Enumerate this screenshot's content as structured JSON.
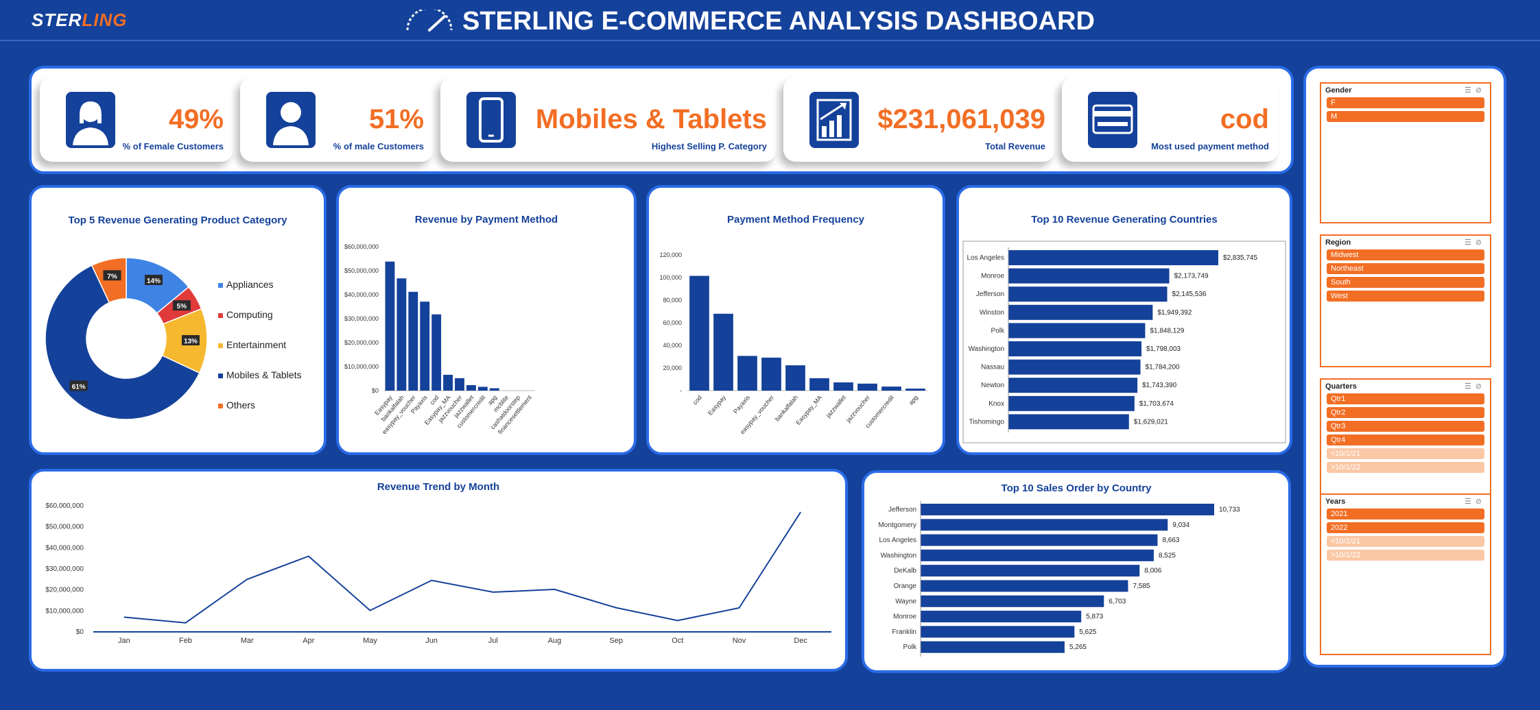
{
  "header": {
    "logo_part1": "STER",
    "logo_part2": "LING",
    "title": "STERLING E-COMMERCE ANALYSIS DASHBOARD"
  },
  "kpis": [
    {
      "value": "49%",
      "label": "% of Female Customers",
      "icon": "female-user-icon"
    },
    {
      "value": "51%",
      "label": "% of male Customers",
      "icon": "male-user-icon"
    },
    {
      "value": "Mobiles & Tablets",
      "label": "Highest Selling P. Category",
      "icon": "mobile-phone-icon"
    },
    {
      "value": "$231,061,039",
      "label": "Total Revenue",
      "icon": "growth-chart-icon"
    },
    {
      "value": "cod",
      "label": "Most used payment method",
      "icon": "credit-card-icon"
    }
  ],
  "colors": {
    "background": "#14419a",
    "accent": "#f26e24",
    "panel_border": "#2a6be6",
    "bar": "#14419a",
    "slicer_selected": "#f26e24",
    "slicer_unselected": "#fbc8a6"
  },
  "chart_data": [
    {
      "id": "donut",
      "type": "pie",
      "title": "Top 5 Revenue Generating Product Category",
      "categories": [
        "Appliances",
        "Computing",
        "Entertainment",
        "Mobiles & Tablets",
        "Others"
      ],
      "values": [
        14,
        5,
        13,
        61,
        7
      ],
      "labels": [
        "14%",
        "5%",
        "13%",
        "61%",
        "7%"
      ],
      "colors": [
        "#3f84e5",
        "#e03a3a",
        "#f5b82e",
        "#14419a",
        "#f26e24"
      ],
      "legend": "right"
    },
    {
      "id": "payrev",
      "type": "bar",
      "title": "Revenue by Payment Method",
      "categories": [
        "Easypay",
        "bankalfalah",
        "easypay_voucher",
        "Payaxis",
        "cod",
        "Easypay_MA",
        "jazzvoucher",
        "jazzwallet",
        "customercredit",
        "apg",
        "mcblite",
        "cashatdoorstep",
        "financesettlement"
      ],
      "values": [
        53800000,
        46800000,
        41200000,
        37100000,
        31800000,
        6600000,
        5200000,
        2300000,
        1600000,
        1000000,
        0,
        0,
        0
      ],
      "ylim": [
        0,
        60000000
      ],
      "yticks": [
        "$0",
        "$10,000,000",
        "$20,000,000",
        "$30,000,000",
        "$40,000,000",
        "$50,000,000",
        "$60,000,000"
      ]
    },
    {
      "id": "payfreq",
      "type": "bar",
      "title": "Payment Method Frequency",
      "categories": [
        "cod",
        "Easypay",
        "Payaxis",
        "easypay_voucher",
        "bankalfalah",
        "Easypay_MA",
        "jazzwallet",
        "jazzvoucher",
        "customercredit",
        "apg"
      ],
      "values": [
        101500,
        68000,
        30700,
        29200,
        22400,
        11000,
        7300,
        6200,
        3600,
        1800
      ],
      "ylim": [
        0,
        120000
      ],
      "yticks": [
        "-",
        "20,000",
        "40,000",
        "60,000",
        "80,000",
        "100,000",
        "120,000"
      ]
    },
    {
      "id": "countries",
      "type": "bar",
      "title": "Top 10 Revenue Generating Countries",
      "categories": [
        "Los Angeles",
        "Monroe",
        "Jefferson",
        "Winston",
        "Polk",
        "Washington",
        "Nassau",
        "Newton",
        "Knox",
        "Tishomingo"
      ],
      "values": [
        2835745,
        2173749,
        2145536,
        1949392,
        1848129,
        1798003,
        1784200,
        1743390,
        1703674,
        1629021
      ],
      "labels": [
        "$2,835,745",
        "$2,173,749",
        "$2,145,536",
        "$1,949,392",
        "$1,848,129",
        "$1,798,003",
        "$1,784,200",
        "$1,743,390",
        "$1,703,674",
        "$1,629,021"
      ],
      "orientation": "horizontal"
    },
    {
      "id": "trend",
      "type": "line",
      "title": "Revenue Trend by Month",
      "categories": [
        "Jan",
        "Feb",
        "Mar",
        "Apr",
        "May",
        "Jun",
        "Jul",
        "Aug",
        "Sep",
        "Oct",
        "Nov",
        "Dec"
      ],
      "values": [
        7000000,
        4300000,
        25000000,
        36000000,
        10200000,
        24500000,
        18900000,
        20200000,
        11500000,
        5400000,
        11400000,
        57000000
      ],
      "ylim": [
        0,
        60000000
      ],
      "yticks": [
        "$0",
        "$10,000,000",
        "$20,000,000",
        "$30,000,000",
        "$40,000,000",
        "$50,000,000",
        "$60,000,000"
      ]
    },
    {
      "id": "orders",
      "type": "bar",
      "title": "Top 10 Sales Order by Country",
      "categories": [
        "Jefferson",
        "Montgomery",
        "Los Angeles",
        "Washington",
        "DeKalb",
        "Orange",
        "Wayne",
        "Monroe",
        "Franklin",
        "Polk"
      ],
      "values": [
        10733,
        9034,
        8663,
        8525,
        8006,
        7585,
        6703,
        5873,
        5625,
        5265
      ],
      "labels": [
        "10,733",
        "9,034",
        "8,663",
        "8,525",
        "8,006",
        "7,585",
        "6,703",
        "5,873",
        "5,625",
        "5,265"
      ],
      "orientation": "horizontal"
    }
  ],
  "slicers": [
    {
      "title": "Gender",
      "items": [
        {
          "label": "F",
          "selected": true
        },
        {
          "label": "M",
          "selected": true
        }
      ]
    },
    {
      "title": "Region",
      "items": [
        {
          "label": "Midwest",
          "selected": true
        },
        {
          "label": "Northeast",
          "selected": true
        },
        {
          "label": "South",
          "selected": true
        },
        {
          "label": "West",
          "selected": true
        }
      ]
    },
    {
      "title": "Quarters",
      "items": [
        {
          "label": "Qtr1",
          "selected": true
        },
        {
          "label": "Qtr2",
          "selected": true
        },
        {
          "label": "Qtr3",
          "selected": true
        },
        {
          "label": "Qtr4",
          "selected": true
        },
        {
          "label": "<10/1/21",
          "selected": false
        },
        {
          "label": ">10/1/22",
          "selected": false
        }
      ]
    },
    {
      "title": "Years",
      "items": [
        {
          "label": "2021",
          "selected": true
        },
        {
          "label": "2022",
          "selected": true
        },
        {
          "label": "<10/1/21",
          "selected": false
        },
        {
          "label": ">10/1/22",
          "selected": false
        }
      ]
    }
  ]
}
